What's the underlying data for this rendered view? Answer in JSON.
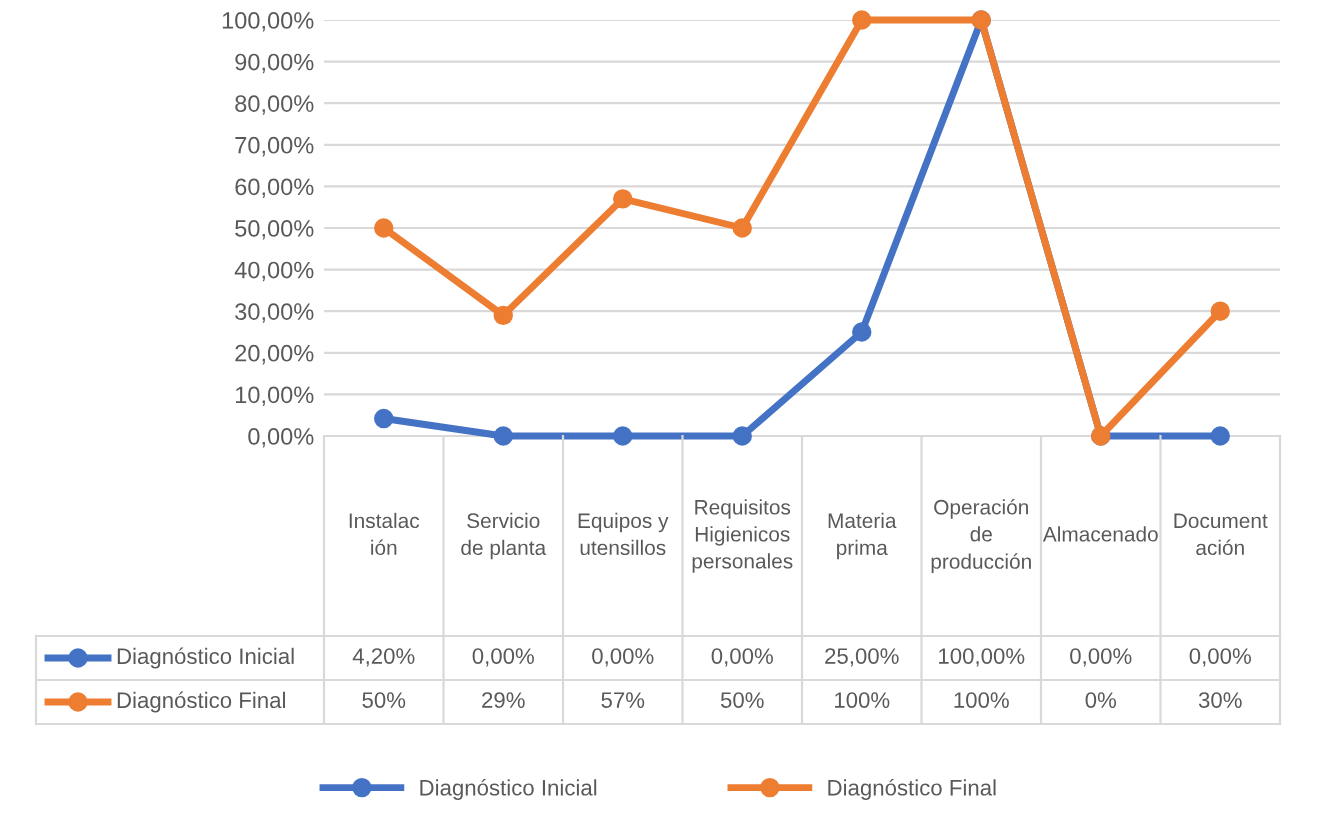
{
  "chart_data": {
    "type": "line",
    "categories": [
      "Instalación",
      "Servicio de planta",
      "Equipos y utensillos",
      "Requisitos Higienicos personales",
      "Materia prima",
      "Operación de producción",
      "Almacenado",
      "Documentación"
    ],
    "series": [
      {
        "name": "Diagnóstico Inicial",
        "color": "#4472c4",
        "values": [
          4.2,
          0,
          0,
          0,
          25,
          100,
          0,
          0
        ],
        "value_labels": [
          "4,20%",
          "0,00%",
          "0,00%",
          "0,00%",
          "25,00%",
          "100,00%",
          "0,00%",
          "0,00%"
        ]
      },
      {
        "name": "Diagnóstico Final",
        "color": "#ed7d31",
        "values": [
          50,
          29,
          57,
          50,
          100,
          100,
          0,
          30
        ],
        "value_labels": [
          "50%",
          "29%",
          "57%",
          "50%",
          "100%",
          "100%",
          "0%",
          "30%"
        ]
      }
    ],
    "ylim": [
      0,
      100
    ],
    "yticks": [
      {
        "value": 0,
        "label": "0,00%"
      },
      {
        "value": 10,
        "label": "10,00%"
      },
      {
        "value": 20,
        "label": "20,00%"
      },
      {
        "value": 30,
        "label": "30,00%"
      },
      {
        "value": 40,
        "label": "40,00%"
      },
      {
        "value": 50,
        "label": "50,00%"
      },
      {
        "value": 60,
        "label": "60,00%"
      },
      {
        "value": 70,
        "label": "70,00%"
      },
      {
        "value": 80,
        "label": "80,00%"
      },
      {
        "value": 90,
        "label": "90,00%"
      },
      {
        "value": 100,
        "label": "100,00%"
      }
    ],
    "grid": "y",
    "legend": "bottom",
    "marker": "circle",
    "line_style": "solid"
  }
}
